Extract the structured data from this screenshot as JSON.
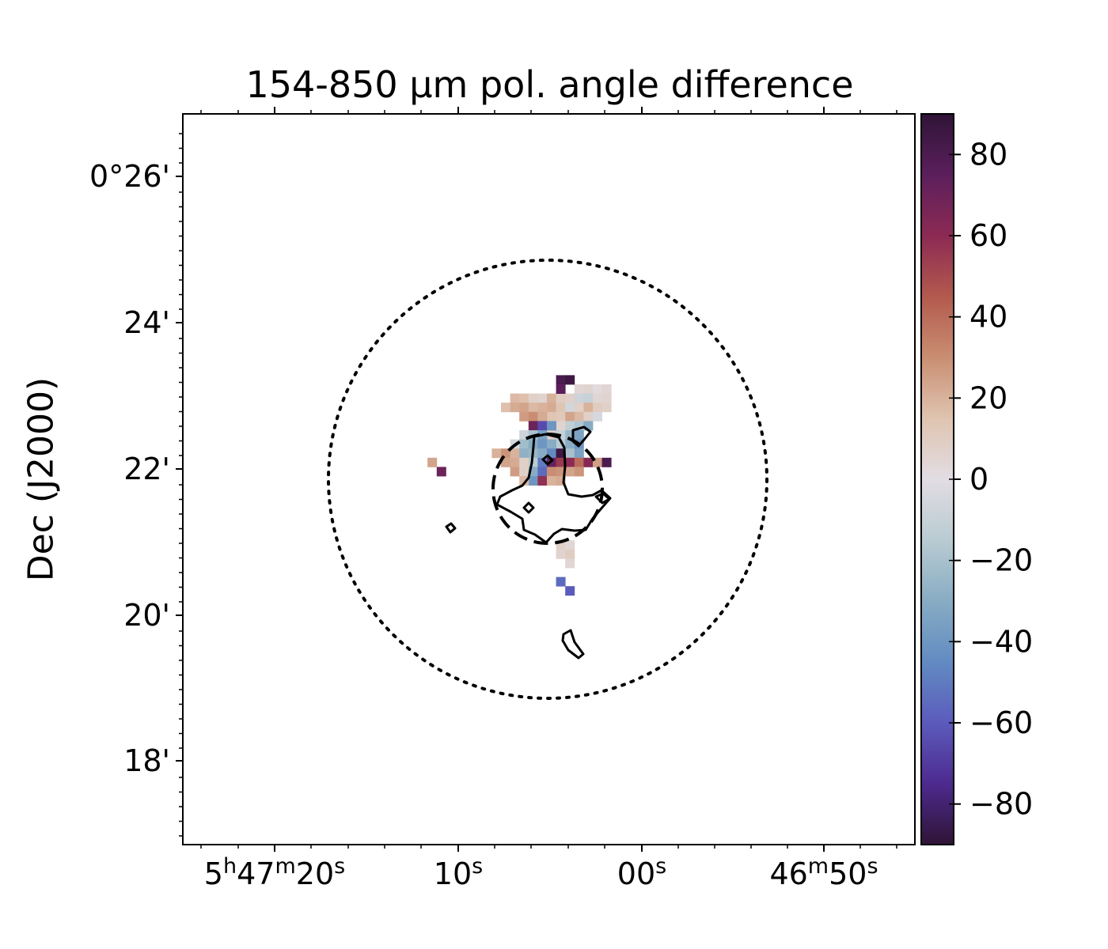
{
  "chart_data": {
    "type": "heatmap",
    "title": "154-850 μm pol. angle difference",
    "ylabel": "Dec (J2000)",
    "xlabel": "",
    "x_ticks": [
      {
        "label": "5h47m20s",
        "parts": [
          [
            "5",
            ""
          ],
          [
            "h",
            "sup"
          ],
          [
            "47",
            ""
          ],
          [
            "m",
            "sup"
          ],
          [
            "20",
            ""
          ],
          [
            "s",
            "sup"
          ]
        ]
      },
      {
        "label": "10s",
        "parts": [
          [
            "10",
            ""
          ],
          [
            "s",
            "sup"
          ]
        ]
      },
      {
        "label": "00s",
        "parts": [
          [
            "00",
            ""
          ],
          [
            "s",
            "sup"
          ]
        ]
      },
      {
        "label": "46m50s",
        "parts": [
          [
            "46",
            ""
          ],
          [
            "m",
            "sup"
          ],
          [
            "50",
            ""
          ],
          [
            "s",
            "sup"
          ]
        ]
      }
    ],
    "y_ticks": [
      "0°26'",
      "24'",
      "22'",
      "20'",
      "18'"
    ],
    "colorbar": {
      "range": [
        -90,
        90
      ],
      "ticks": [
        80,
        60,
        40,
        20,
        0,
        -20,
        -40,
        -60,
        -80
      ],
      "tick_labels": [
        "80",
        "60",
        "40",
        "20",
        "0",
        "−20",
        "−40",
        "−60",
        "−80"
      ],
      "colormap": "twilight_shifted",
      "stops": [
        "#2f1436",
        "#5b1f5c",
        "#8c2a53",
        "#b35a4e",
        "#c98e72",
        "#dfc4b0",
        "#e2dde3",
        "#b9cbd2",
        "#88acc3",
        "#628bc2",
        "#5b5bbc",
        "#4d2a8e",
        "#2f1436"
      ]
    },
    "overlays": {
      "dotted_circle": "large field circle",
      "dashed_circle": "central region circle",
      "contours": "black outlines of significant regions"
    },
    "pixels": [
      {
        "x": 3.5,
        "y": 9.5,
        "v": 4
      },
      {
        "x": 4.5,
        "y": 9.5,
        "v": 6
      },
      {
        "x": 5.5,
        "y": 9.5,
        "v": 2
      },
      {
        "x": 6.5,
        "y": 9.5,
        "v": 4
      },
      {
        "x": -3.5,
        "y": 8.5,
        "v": 18
      },
      {
        "x": -2.5,
        "y": 8.5,
        "v": 16
      },
      {
        "x": -1.5,
        "y": 8.5,
        "v": 8
      },
      {
        "x": -0.5,
        "y": 8.5,
        "v": 6
      },
      {
        "x": 0.5,
        "y": 8.5,
        "v": 20
      },
      {
        "x": 1.5,
        "y": 8.5,
        "v": 10
      },
      {
        "x": 2.5,
        "y": 8.5,
        "v": 8
      },
      {
        "x": 3.5,
        "y": 8.5,
        "v": -8
      },
      {
        "x": 4.5,
        "y": 8.5,
        "v": -10
      },
      {
        "x": 5.5,
        "y": 8.5,
        "v": 4
      },
      {
        "x": 6.5,
        "y": 8.5,
        "v": 6
      },
      {
        "x": 0.5,
        "y": 7.5,
        "v": 22
      },
      {
        "x": 1.5,
        "y": 7.5,
        "v": 14
      },
      {
        "x": 2.5,
        "y": 7.5,
        "v": -6
      },
      {
        "x": 3.5,
        "y": 7.5,
        "v": 8
      },
      {
        "x": 4.5,
        "y": 7.5,
        "v": 20
      },
      {
        "x": 5.5,
        "y": 7.5,
        "v": 10
      },
      {
        "x": 6.5,
        "y": 7.5,
        "v": 8
      },
      {
        "x": 0.5,
        "y": 6.5,
        "v": 14
      },
      {
        "x": 1.5,
        "y": 6.5,
        "v": 12
      },
      {
        "x": 2.5,
        "y": 6.5,
        "v": 24
      },
      {
        "x": 3.5,
        "y": 6.5,
        "v": 18
      },
      {
        "x": 4.5,
        "y": 6.5,
        "v": 8
      },
      {
        "x": 5.5,
        "y": 6.5,
        "v": -4
      },
      {
        "x": 1.5,
        "y": 5.5,
        "v": 6
      },
      {
        "x": 2.5,
        "y": 5.5,
        "v": -12
      },
      {
        "x": 3.5,
        "y": 5.5,
        "v": -18
      },
      {
        "x": 4.5,
        "y": 5.5,
        "v": -30
      },
      {
        "x": 0.5,
        "y": 4.5,
        "v": 8
      },
      {
        "x": 1.5,
        "y": 4.5,
        "v": -10
      },
      {
        "x": 2.5,
        "y": 4.5,
        "v": -25
      },
      {
        "x": 3.5,
        "y": 4.5,
        "v": -35
      },
      {
        "x": 1.5,
        "y": 3.5,
        "v": -15
      },
      {
        "x": 2.5,
        "y": 3.5,
        "v": -30
      },
      {
        "x": 3.5,
        "y": 3.5,
        "v": -40
      },
      {
        "x": 2.5,
        "y": 2.5,
        "v": -20
      },
      {
        "x": 3.5,
        "y": 2.5,
        "v": -35
      },
      {
        "x": -4.5,
        "y": 7.5,
        "v": 16
      },
      {
        "x": -3.5,
        "y": 7.5,
        "v": 22
      },
      {
        "x": -2.5,
        "y": 7.5,
        "v": 24
      },
      {
        "x": -1.5,
        "y": 7.5,
        "v": 18
      },
      {
        "x": -0.5,
        "y": 7.5,
        "v": 20
      },
      {
        "x": -2.5,
        "y": 6.5,
        "v": 26
      },
      {
        "x": -1.5,
        "y": 6.5,
        "v": 30
      },
      {
        "x": -0.5,
        "y": 6.5,
        "v": 22
      },
      {
        "x": -1.5,
        "y": 5.5,
        "v": 70
      },
      {
        "x": -0.5,
        "y": 5.5,
        "v": -65
      },
      {
        "x": 0.5,
        "y": 5.5,
        "v": -40
      },
      {
        "x": -2.5,
        "y": 4.5,
        "v": -8
      },
      {
        "x": -1.5,
        "y": 4.5,
        "v": -20
      },
      {
        "x": -0.5,
        "y": 4.5,
        "v": -35
      },
      {
        "x": -3.5,
        "y": 3.5,
        "v": -5
      },
      {
        "x": -2.5,
        "y": 3.5,
        "v": -22
      },
      {
        "x": -1.5,
        "y": 3.5,
        "v": -30
      },
      {
        "x": -0.5,
        "y": 3.5,
        "v": -40
      },
      {
        "x": 0.5,
        "y": 3.5,
        "v": -30
      },
      {
        "x": -5.5,
        "y": 2.5,
        "v": 20
      },
      {
        "x": -4.5,
        "y": 2.5,
        "v": 28
      },
      {
        "x": -3.5,
        "y": 2.5,
        "v": 20
      },
      {
        "x": -2.5,
        "y": 2.5,
        "v": -28
      },
      {
        "x": -1.5,
        "y": 2.5,
        "v": -25
      },
      {
        "x": -0.5,
        "y": 2.5,
        "v": -30
      },
      {
        "x": 0.5,
        "y": 2.5,
        "v": -45
      },
      {
        "x": 1.5,
        "y": 2.5,
        "v": 85
      },
      {
        "x": -4.5,
        "y": 1.5,
        "v": 24
      },
      {
        "x": -3.5,
        "y": 1.5,
        "v": 22
      },
      {
        "x": -2.5,
        "y": 1.5,
        "v": 8
      },
      {
        "x": -1.5,
        "y": 1.5,
        "v": -15
      },
      {
        "x": -0.5,
        "y": 1.5,
        "v": -50
      },
      {
        "x": 0.5,
        "y": 1.5,
        "v": 72
      },
      {
        "x": 1.5,
        "y": 1.5,
        "v": 55
      },
      {
        "x": 2.5,
        "y": 1.5,
        "v": 60
      },
      {
        "x": 3.5,
        "y": 1.5,
        "v": 40
      },
      {
        "x": 4.5,
        "y": 1.5,
        "v": 62
      },
      {
        "x": 5.5,
        "y": 1.5,
        "v": 25
      },
      {
        "x": -3.5,
        "y": 0.5,
        "v": 26
      },
      {
        "x": -2.5,
        "y": 0.5,
        "v": 8
      },
      {
        "x": -1.5,
        "y": 0.5,
        "v": -30
      },
      {
        "x": -0.5,
        "y": 0.5,
        "v": -55
      },
      {
        "x": 0.5,
        "y": 0.5,
        "v": 30
      },
      {
        "x": 1.5,
        "y": 0.5,
        "v": 28
      },
      {
        "x": 2.5,
        "y": 0.5,
        "v": 24
      },
      {
        "x": 3.5,
        "y": 0.5,
        "v": 28
      },
      {
        "x": -1.5,
        "y": -0.5,
        "v": -40
      },
      {
        "x": -0.5,
        "y": -0.5,
        "v": 58
      },
      {
        "x": 0.5,
        "y": -0.5,
        "v": 20
      },
      {
        "x": 1.5,
        "y": -0.5,
        "v": 22
      },
      {
        "x": -2.5,
        "y": -0.5,
        "v": 18
      },
      {
        "x": 1.5,
        "y": 10.5,
        "v": 80
      },
      {
        "x": 2.5,
        "y": 10.5,
        "v": 85
      },
      {
        "x": 1.5,
        "y": 9.5,
        "v": 75
      },
      {
        "x": 6.5,
        "y": 1.5,
        "v": 80
      },
      {
        "x": -12.5,
        "y": 1.5,
        "v": 24
      },
      {
        "x": -11.5,
        "y": 0.5,
        "v": 70
      },
      {
        "x": 1.5,
        "y": -7.5,
        "v": 8
      },
      {
        "x": 2.5,
        "y": -7.5,
        "v": 4
      },
      {
        "x": 1.5,
        "y": -8.5,
        "v": 6
      },
      {
        "x": 2.5,
        "y": -8.5,
        "v": 10
      },
      {
        "x": 2.5,
        "y": -9.5,
        "v": 4
      },
      {
        "x": 1.5,
        "y": -11.5,
        "v": -55
      },
      {
        "x": 2.5,
        "y": -12.5,
        "v": -60
      }
    ]
  }
}
